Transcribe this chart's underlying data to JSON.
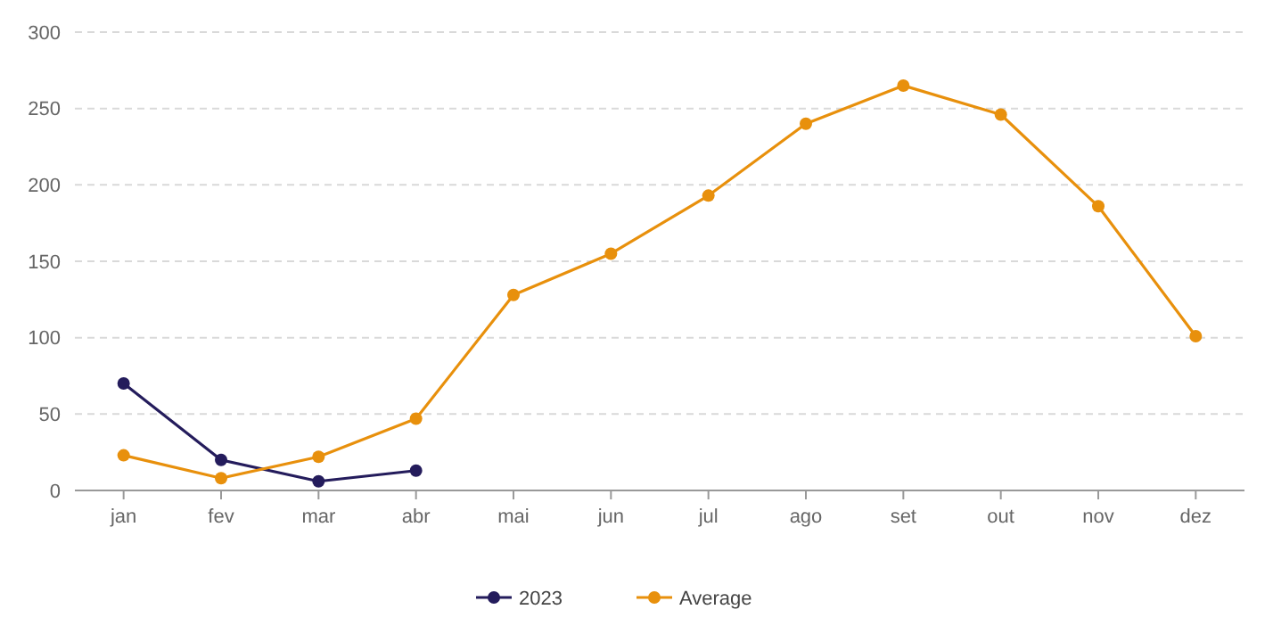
{
  "chart_data": {
    "type": "line",
    "categories": [
      "jan",
      "fev",
      "mar",
      "abr",
      "mai",
      "jun",
      "jul",
      "ago",
      "set",
      "out",
      "nov",
      "dez"
    ],
    "series": [
      {
        "name": "2023",
        "color": "#241c5c",
        "values": [
          70,
          20,
          6,
          13,
          null,
          null,
          null,
          null,
          null,
          null,
          null,
          null
        ]
      },
      {
        "name": "Average",
        "color": "#e8900c",
        "values": [
          23,
          8,
          22,
          47,
          128,
          155,
          193,
          240,
          265,
          246,
          186,
          101
        ]
      }
    ],
    "ylim": [
      0,
      300
    ],
    "yticks": [
      0,
      50,
      100,
      150,
      200,
      250,
      300
    ],
    "grid": "y",
    "legend": "bottom",
    "marker": "circle",
    "line_style": "solid"
  }
}
